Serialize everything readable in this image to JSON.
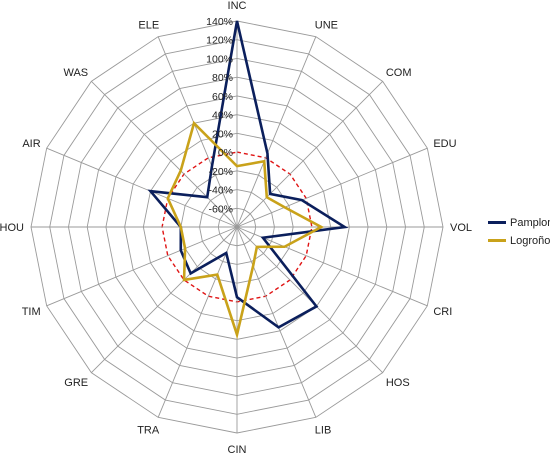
{
  "colors": {
    "pamplona": "#0b1f5c",
    "logrono": "#c9a21a",
    "zero_ring": "#e01414",
    "grid": "#9a9a9a",
    "text": "#222222"
  },
  "chart_data": {
    "type": "radar",
    "title": "",
    "categories": [
      "INC",
      "UNE",
      "COM",
      "EDU",
      "VOL",
      "CRI",
      "HOS",
      "LIB",
      "CIN",
      "TRA",
      "GRE",
      "TIM",
      "HOU",
      "AIR",
      "WAS",
      "ELE"
    ],
    "r_ticks": [
      -60,
      -40,
      -20,
      0,
      20,
      40,
      60,
      80,
      100,
      120,
      140
    ],
    "r_tick_labels": [
      "-60%",
      "-40%",
      "-20%",
      "0%",
      "20%",
      "40%",
      "60%",
      "80%",
      "100%",
      "120%",
      "140%"
    ],
    "rlim": [
      -80,
      140
    ],
    "zero_ring_style": "red-dashed",
    "legend_position": "right",
    "grid": true,
    "series": [
      {
        "name": "Pamplona",
        "values": [
          140,
          5,
          -30,
          -5,
          35,
          -50,
          40,
          36,
          -5,
          -50,
          -10,
          -15,
          -20,
          20,
          -35,
          -10
        ]
      },
      {
        "name": "Logroño",
        "values": [
          -15,
          -4,
          -35,
          -25,
          10,
          -25,
          -50,
          -35,
          35,
          -25,
          0,
          -20,
          -20,
          0,
          5,
          40
        ]
      }
    ]
  }
}
